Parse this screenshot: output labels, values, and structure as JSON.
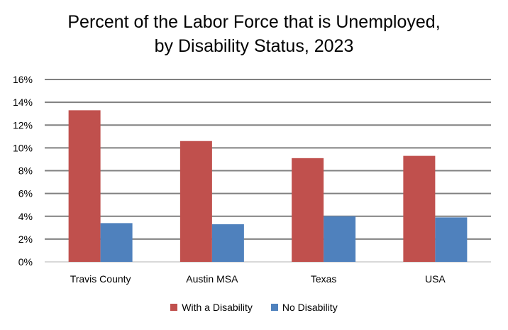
{
  "chart_data": {
    "type": "bar",
    "title_line1": "Percent of the Labor Force that is Unemployed,",
    "title_line2": "by Disability Status, 2023",
    "xlabel": "",
    "ylabel": "",
    "categories": [
      "Travis County",
      "Austin MSA",
      "Texas",
      "USA"
    ],
    "series": [
      {
        "name": "With a Disability",
        "color": "#C0504D",
        "values": [
          13.3,
          10.6,
          9.1,
          9.3
        ]
      },
      {
        "name": "No Disability",
        "color": "#4F81BD",
        "values": [
          3.4,
          3.3,
          4.0,
          3.9
        ]
      }
    ],
    "ylim": [
      0,
      16
    ],
    "yticks": [
      "0%",
      "2%",
      "4%",
      "6%",
      "8%",
      "10%",
      "12%",
      "14%",
      "16%"
    ],
    "grid": true,
    "legend_position": "bottom"
  }
}
